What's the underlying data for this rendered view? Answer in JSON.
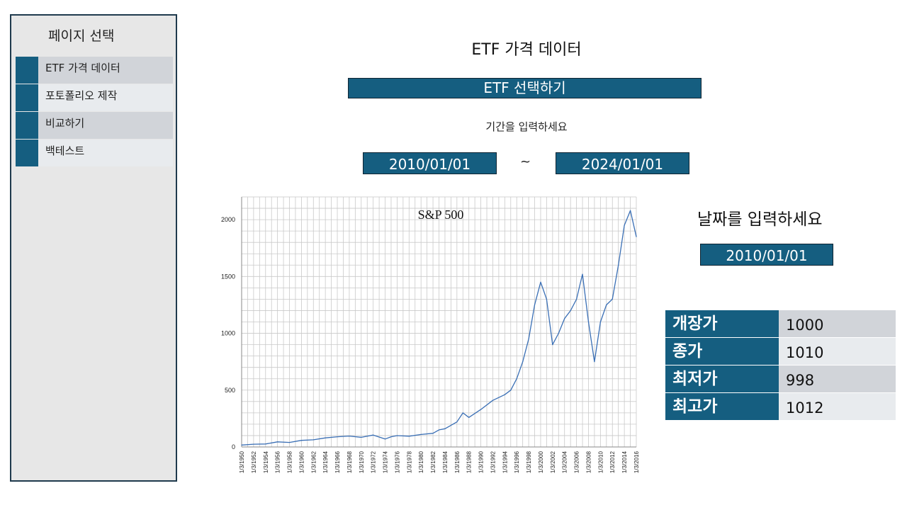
{
  "sidebar": {
    "title": "페이지 선택",
    "items": [
      {
        "label": "ETF 가격 데이터"
      },
      {
        "label": "포토폴리오 제작"
      },
      {
        "label": "비교하기"
      },
      {
        "label": "백테스트"
      }
    ]
  },
  "main": {
    "title": "ETF 가격 데이터",
    "etf_select_label": "ETF 선택하기",
    "period_label": "기간을 입력하세요",
    "start_date": "2010/01/01",
    "range_separator": "~",
    "end_date": "2024/01/01"
  },
  "detail": {
    "date_prompt": "날짜를 입력하세요",
    "date_value": "2010/01/01",
    "rows": [
      {
        "label": "개장가",
        "value": "1000"
      },
      {
        "label": "종가",
        "value": "1010"
      },
      {
        "label": "최저가",
        "value": "998"
      },
      {
        "label": "최고가",
        "value": "1012"
      }
    ]
  },
  "colors": {
    "accent": "#155e80",
    "line": "#3a6fb5"
  },
  "chart_data": {
    "type": "line",
    "title": "S&P 500",
    "xlabel": "",
    "ylabel": "",
    "ylim": [
      0,
      2200
    ],
    "yticks": [
      0,
      500,
      1000,
      1500,
      2000
    ],
    "xticks": [
      "1/3/1950",
      "1/3/1952",
      "1/3/1954",
      "1/3/1956",
      "1/3/1958",
      "1/3/1960",
      "1/3/1962",
      "1/3/1964",
      "1/3/1966",
      "1/3/1968",
      "1/3/1970",
      "1/3/1972",
      "1/3/1974",
      "1/3/1976",
      "1/3/1978",
      "1/3/1980",
      "1/3/1982",
      "1/3/1984",
      "1/3/1986",
      "1/3/1988",
      "1/3/1990",
      "1/3/1992",
      "1/3/1994",
      "1/3/1996",
      "1/3/1998",
      "1/3/2000",
      "1/3/2002",
      "1/3/2004",
      "1/3/2006",
      "1/3/2008",
      "1/3/2010",
      "1/3/2012",
      "1/3/2014",
      "1/3/2016"
    ],
    "grid": true,
    "series": [
      {
        "name": "S&P 500",
        "x": [
          1950,
          1952,
          1954,
          1956,
          1958,
          1960,
          1962,
          1964,
          1966,
          1968,
          1970,
          1972,
          1974,
          1975,
          1976,
          1978,
          1980,
          1982,
          1983,
          1984,
          1986,
          1987,
          1988,
          1990,
          1992,
          1994,
          1995,
          1996,
          1997,
          1998,
          1999,
          2000,
          2001,
          2002,
          2003,
          2004,
          2005,
          2006,
          2007,
          2008,
          2009,
          2010,
          2011,
          2012,
          2013,
          2014,
          2015,
          2016
        ],
        "y": [
          17,
          24,
          26,
          45,
          40,
          58,
          63,
          80,
          90,
          96,
          85,
          105,
          70,
          90,
          100,
          95,
          110,
          120,
          150,
          160,
          220,
          300,
          260,
          330,
          410,
          460,
          500,
          600,
          750,
          950,
          1250,
          1450,
          1300,
          900,
          1000,
          1130,
          1200,
          1300,
          1520,
          1100,
          750,
          1100,
          1250,
          1300,
          1600,
          1950,
          2080,
          1850
        ]
      }
    ]
  }
}
